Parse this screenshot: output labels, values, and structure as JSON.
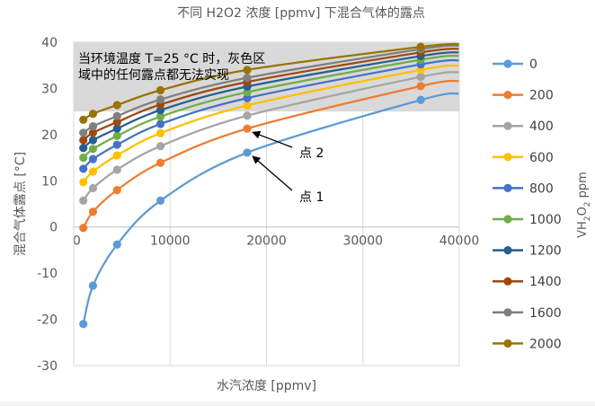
{
  "chart_data": {
    "type": "line",
    "title": "不同 H2O2 浓度 [ppmv] 下混合气体的露点",
    "xlabel": "水汽浓度 [ppmv]",
    "ylabel": "混合气体露点 [°C]",
    "legend_title": "VH2O2 ppm",
    "legend_position": "right",
    "xlim": [
      0,
      40000
    ],
    "ylim": [
      -30,
      40
    ],
    "x_ticks": [
      "0",
      "10000",
      "20000",
      "30000",
      "40000"
    ],
    "y_ticks": [
      "40",
      "30",
      "20",
      "10",
      "0",
      "-10",
      "-20",
      "-30"
    ],
    "grid": "vertical",
    "shaded_region": {
      "y_from": 25,
      "y_to": 40,
      "color": "#d9d9d9",
      "label": "当环境温度 T=25 °C 时，灰色区域中的任何露点都无法实现"
    },
    "annotations": [
      {
        "text": "点 2",
        "arrow_to": [
          18000,
          21.3
        ]
      },
      {
        "text": "点 1",
        "arrow_to": [
          18000,
          16.1
        ]
      }
    ],
    "series": [
      {
        "name": "0",
        "color": "#5b9bd5",
        "x": [
          1000,
          2000,
          4500,
          9000,
          18000,
          36000
        ],
        "y": [
          -21,
          -12.7,
          -3.8,
          5.7,
          16.1,
          27.5
        ]
      },
      {
        "name": "200",
        "color": "#ed7d31",
        "x": [
          1000,
          2000,
          4500,
          9000,
          18000,
          36000
        ],
        "y": [
          -0.2,
          3.3,
          8.0,
          13.9,
          21.3,
          30.5
        ]
      },
      {
        "name": "400",
        "color": "#a5a5a5",
        "x": [
          1000,
          2000,
          4500,
          9000,
          18000,
          36000
        ],
        "y": [
          5.7,
          8.4,
          12.4,
          17.5,
          24.1,
          32.5
        ]
      },
      {
        "name": "600",
        "color": "#ffc000",
        "x": [
          1000,
          2000,
          4500,
          9000,
          18000,
          36000
        ],
        "y": [
          9.7,
          12.0,
          15.5,
          20.3,
          26.3,
          34.0
        ]
      },
      {
        "name": "800",
        "color": "#4472c4",
        "x": [
          1000,
          2000,
          4500,
          9000,
          18000,
          36000
        ],
        "y": [
          12.6,
          14.7,
          17.8,
          22.3,
          27.9,
          35.2
        ]
      },
      {
        "name": "1000",
        "color": "#70ad47",
        "x": [
          1000,
          2000,
          4500,
          9000,
          18000,
          36000
        ],
        "y": [
          15.0,
          16.9,
          19.7,
          23.9,
          29.2,
          36.2
        ]
      },
      {
        "name": "1200",
        "color": "#255e91",
        "x": [
          1000,
          2000,
          4500,
          9000,
          18000,
          36000
        ],
        "y": [
          17.1,
          18.8,
          21.3,
          25.3,
          30.4,
          37.0
        ]
      },
      {
        "name": "1400",
        "color": "#9e480e",
        "x": [
          1000,
          2000,
          4500,
          9000,
          18000,
          36000
        ],
        "y": [
          18.8,
          20.4,
          22.7,
          26.5,
          31.4,
          37.8
        ]
      },
      {
        "name": "1600",
        "color": "#7f7f7f",
        "x": [
          1000,
          2000,
          4500,
          9000,
          18000,
          36000
        ],
        "y": [
          20.4,
          21.8,
          24.0,
          27.6,
          32.3,
          38.5
        ]
      },
      {
        "name": "2000",
        "color": "#997300",
        "x": [
          1000,
          2000,
          4500,
          9000,
          18000,
          36000
        ],
        "y": [
          23.2,
          24.5,
          26.4,
          29.6,
          34.0,
          39.0
        ]
      }
    ]
  }
}
